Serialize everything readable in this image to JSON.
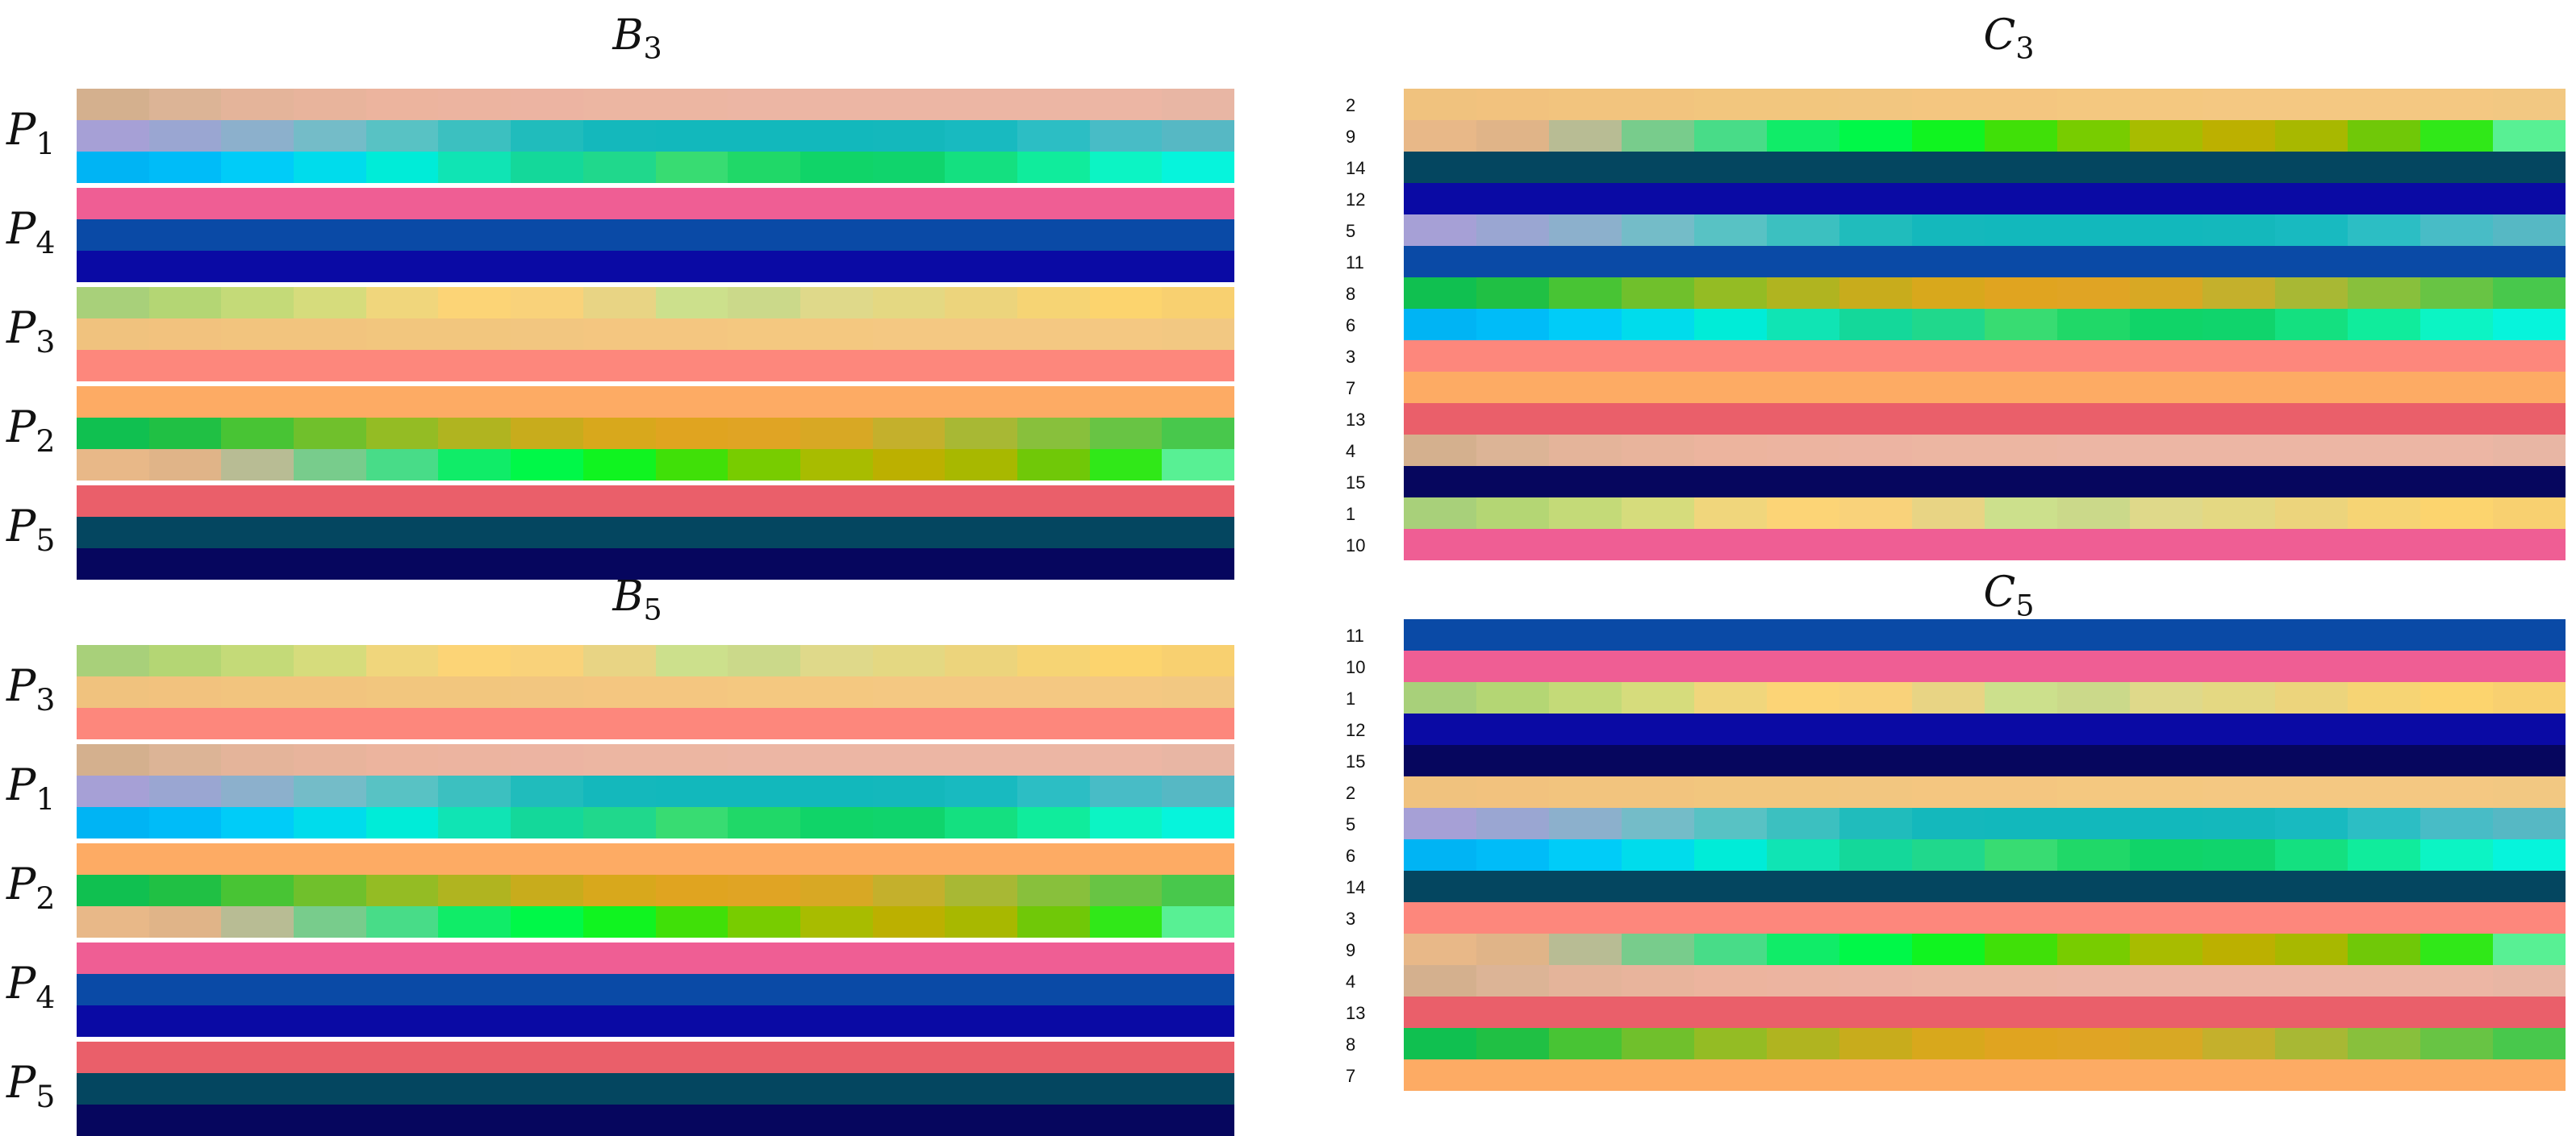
{
  "colors": {
    "c1": [
      "#a8d07a",
      "#b4d674",
      "#c4da78",
      "#d6dc7c",
      "#f0d67c",
      "#fcd476",
      "#f9d27a",
      "#e8d484",
      "#cce08c",
      "#cbd98a",
      "#dfd98a",
      "#e4d882",
      "#ecd47c",
      "#f6d474",
      "#fcd46e",
      "#f8d070"
    ],
    "c2": [
      "#f0c27e",
      "#f2c27e",
      "#f2c47e",
      "#f2c47e",
      "#f2c67e",
      "#f2c67e",
      "#f2c680",
      "#f4c680",
      "#f4c680",
      "#f4c880",
      "#f4c880",
      "#f4c882",
      "#f4c882",
      "#f4c882",
      "#f4c882",
      "#f2c882"
    ],
    "c3": [
      "#fd877c",
      "#fd877c",
      "#fd877c",
      "#fd877c",
      "#fd877c",
      "#fd877c",
      "#fd877c",
      "#fd877c",
      "#fd877c",
      "#fd877c",
      "#fd877c",
      "#fd877c",
      "#fd877c",
      "#fd877c",
      "#fd877c",
      "#fd877c"
    ],
    "c4": [
      "#d4b08e",
      "#dcb496",
      "#e4b49a",
      "#e8b49c",
      "#ecb49e",
      "#ecb4a0",
      "#ecb4a2",
      "#ecb6a2",
      "#ecb6a2",
      "#ecb6a4",
      "#ecb6a4",
      "#ecb6a4",
      "#ecb6a4",
      "#ecb6a4",
      "#ecb6a4",
      "#e8b6a4"
    ],
    "c5": [
      "#a6a0d6",
      "#9aa6d2",
      "#8cb0cc",
      "#74bcc8",
      "#58c2c4",
      "#3cc0c0",
      "#20bcbc",
      "#14b8bc",
      "#12b8bc",
      "#12b8bc",
      "#12b8bc",
      "#14b8bc",
      "#18bac0",
      "#2cbec4",
      "#48bcc6",
      "#56b8c4"
    ],
    "c6": [
      "#00b4f4",
      "#00bcf8",
      "#00ccf8",
      "#00dcec",
      "#00ecd8",
      "#10e4b4",
      "#14d89a",
      "#20d88c",
      "#38dc72",
      "#20d868",
      "#10d468",
      "#10d46c",
      "#14e080",
      "#10ec9c",
      "#0cf4c4",
      "#06f4dc"
    ],
    "c7": [
      "#fdab64",
      "#fdab64",
      "#fdab64",
      "#fdab64",
      "#fdab64",
      "#fdab64",
      "#fdab64",
      "#fdab64",
      "#fdab64",
      "#fdab64",
      "#fdab64",
      "#fdab64",
      "#fdab64",
      "#fdab64",
      "#fdab64",
      "#fdab64"
    ],
    "c8": [
      "#10c050",
      "#20c044",
      "#48c434",
      "#70c02c",
      "#94bc24",
      "#b0b420",
      "#c8ac1c",
      "#d8a81c",
      "#e0a420",
      "#e0a424",
      "#d8a824",
      "#c4b02c",
      "#a8b834",
      "#88c03c",
      "#68c444",
      "#48c84c"
    ],
    "c9": [
      "#e8b888",
      "#e0b488",
      "#b8bc94",
      "#78cc8c",
      "#48dc88",
      "#10ec68",
      "#00f848",
      "#10f420",
      "#40e008",
      "#78cc00",
      "#a8bc00",
      "#bcb000",
      "#a8b800",
      "#70c808",
      "#30e818",
      "#58f094"
    ],
    "c10": [
      "#ef5e94",
      "#ef5e94",
      "#ef5e94",
      "#ef5e94",
      "#ef5e94",
      "#ef5e94",
      "#ef5e94",
      "#ef5e94",
      "#ef5e94",
      "#ef5e94",
      "#ef5e94",
      "#ef5e94",
      "#ef5e94",
      "#ef5e94",
      "#ef5e94",
      "#ef5e94"
    ],
    "c11": [
      "#0a4aa6",
      "#0a4aa6",
      "#0a4aa6",
      "#0a4aa6",
      "#0a4aa6",
      "#0a4aa6",
      "#0a4aa6",
      "#0a4aa6",
      "#0a4aa6",
      "#0a4aa6",
      "#0a4aa6",
      "#0a4aa6",
      "#0a4aa6",
      "#0a4aa6",
      "#0a4aa6",
      "#0a4aa6"
    ],
    "c12": [
      "#0a0aa4",
      "#0a0aa4",
      "#0a0aa4",
      "#0a0aa4",
      "#0a0aa4",
      "#0a0aa4",
      "#0a0aa4",
      "#0a0aa4",
      "#0a0aa4",
      "#0a0aa4",
      "#0a0aa4",
      "#0a0aa4",
      "#0a0aa4",
      "#0a0aa4",
      "#0a0aa4",
      "#0a0aa4"
    ],
    "c13": [
      "#ea5f6a",
      "#ea5f6a",
      "#ea5f6a",
      "#ea5f6a",
      "#ea5f6a",
      "#ea5f6a",
      "#ea5f6a",
      "#ea5f6a",
      "#ea5f6a",
      "#ea5f6a",
      "#ea5f6a",
      "#ea5f6a",
      "#ea5f6a",
      "#ea5f6a",
      "#ea5f6a",
      "#ea5f6a"
    ],
    "c14": [
      "#044660",
      "#044660",
      "#044660",
      "#044660",
      "#044660",
      "#044660",
      "#044660",
      "#044660",
      "#044660",
      "#044660",
      "#044660",
      "#044660",
      "#044660",
      "#044660",
      "#044660",
      "#044660"
    ],
    "c15": [
      "#06065e",
      "#06065e",
      "#06065e",
      "#06065e",
      "#06065e",
      "#06065e",
      "#06065e",
      "#06065e",
      "#06065e",
      "#06065e",
      "#06065e",
      "#06065e",
      "#06065e",
      "#06065e",
      "#06065e",
      "#06065e"
    ]
  },
  "panels": {
    "B3": {
      "title_main": "B",
      "title_sub": "3",
      "groups": [
        {
          "label_main": "P",
          "label_sub": "1",
          "rows": [
            "c4",
            "c5",
            "c6"
          ]
        },
        {
          "label_main": "P",
          "label_sub": "4",
          "rows": [
            "c10",
            "c11",
            "c12"
          ]
        },
        {
          "label_main": "P",
          "label_sub": "3",
          "rows": [
            "c1",
            "c2",
            "c3"
          ]
        },
        {
          "label_main": "P",
          "label_sub": "2",
          "rows": [
            "c7",
            "c8",
            "c9"
          ]
        },
        {
          "label_main": "P",
          "label_sub": "5",
          "rows": [
            "c13",
            "c14",
            "c15"
          ]
        }
      ]
    },
    "B5": {
      "title_main": "B",
      "title_sub": "5",
      "groups": [
        {
          "label_main": "P",
          "label_sub": "3",
          "rows": [
            "c1",
            "c2",
            "c3"
          ]
        },
        {
          "label_main": "P",
          "label_sub": "1",
          "rows": [
            "c4",
            "c5",
            "c6"
          ]
        },
        {
          "label_main": "P",
          "label_sub": "2",
          "rows": [
            "c7",
            "c8",
            "c9"
          ]
        },
        {
          "label_main": "P",
          "label_sub": "4",
          "rows": [
            "c10",
            "c11",
            "c12"
          ]
        },
        {
          "label_main": "P",
          "label_sub": "5",
          "rows": [
            "c13",
            "c14",
            "c15"
          ]
        }
      ]
    },
    "C3": {
      "title_main": "C",
      "title_sub": "3",
      "rows": [
        {
          "label": "2",
          "color": "c2"
        },
        {
          "label": "9",
          "color": "c9"
        },
        {
          "label": "14",
          "color": "c14"
        },
        {
          "label": "12",
          "color": "c12"
        },
        {
          "label": "5",
          "color": "c5"
        },
        {
          "label": "11",
          "color": "c11"
        },
        {
          "label": "8",
          "color": "c8"
        },
        {
          "label": "6",
          "color": "c6"
        },
        {
          "label": "3",
          "color": "c3"
        },
        {
          "label": "7",
          "color": "c7"
        },
        {
          "label": "13",
          "color": "c13"
        },
        {
          "label": "4",
          "color": "c4"
        },
        {
          "label": "15",
          "color": "c15"
        },
        {
          "label": "1",
          "color": "c1"
        },
        {
          "label": "10",
          "color": "c10"
        }
      ]
    },
    "C5": {
      "title_main": "C",
      "title_sub": "5",
      "rows": [
        {
          "label": "11",
          "color": "c11"
        },
        {
          "label": "10",
          "color": "c10"
        },
        {
          "label": "1",
          "color": "c1"
        },
        {
          "label": "12",
          "color": "c12"
        },
        {
          "label": "15",
          "color": "c15"
        },
        {
          "label": "2",
          "color": "c2"
        },
        {
          "label": "5",
          "color": "c5"
        },
        {
          "label": "6",
          "color": "c6"
        },
        {
          "label": "14",
          "color": "c14"
        },
        {
          "label": "3",
          "color": "c3"
        },
        {
          "label": "9",
          "color": "c9"
        },
        {
          "label": "4",
          "color": "c4"
        },
        {
          "label": "13",
          "color": "c13"
        },
        {
          "label": "8",
          "color": "c8"
        },
        {
          "label": "7",
          "color": "c7"
        }
      ]
    }
  }
}
